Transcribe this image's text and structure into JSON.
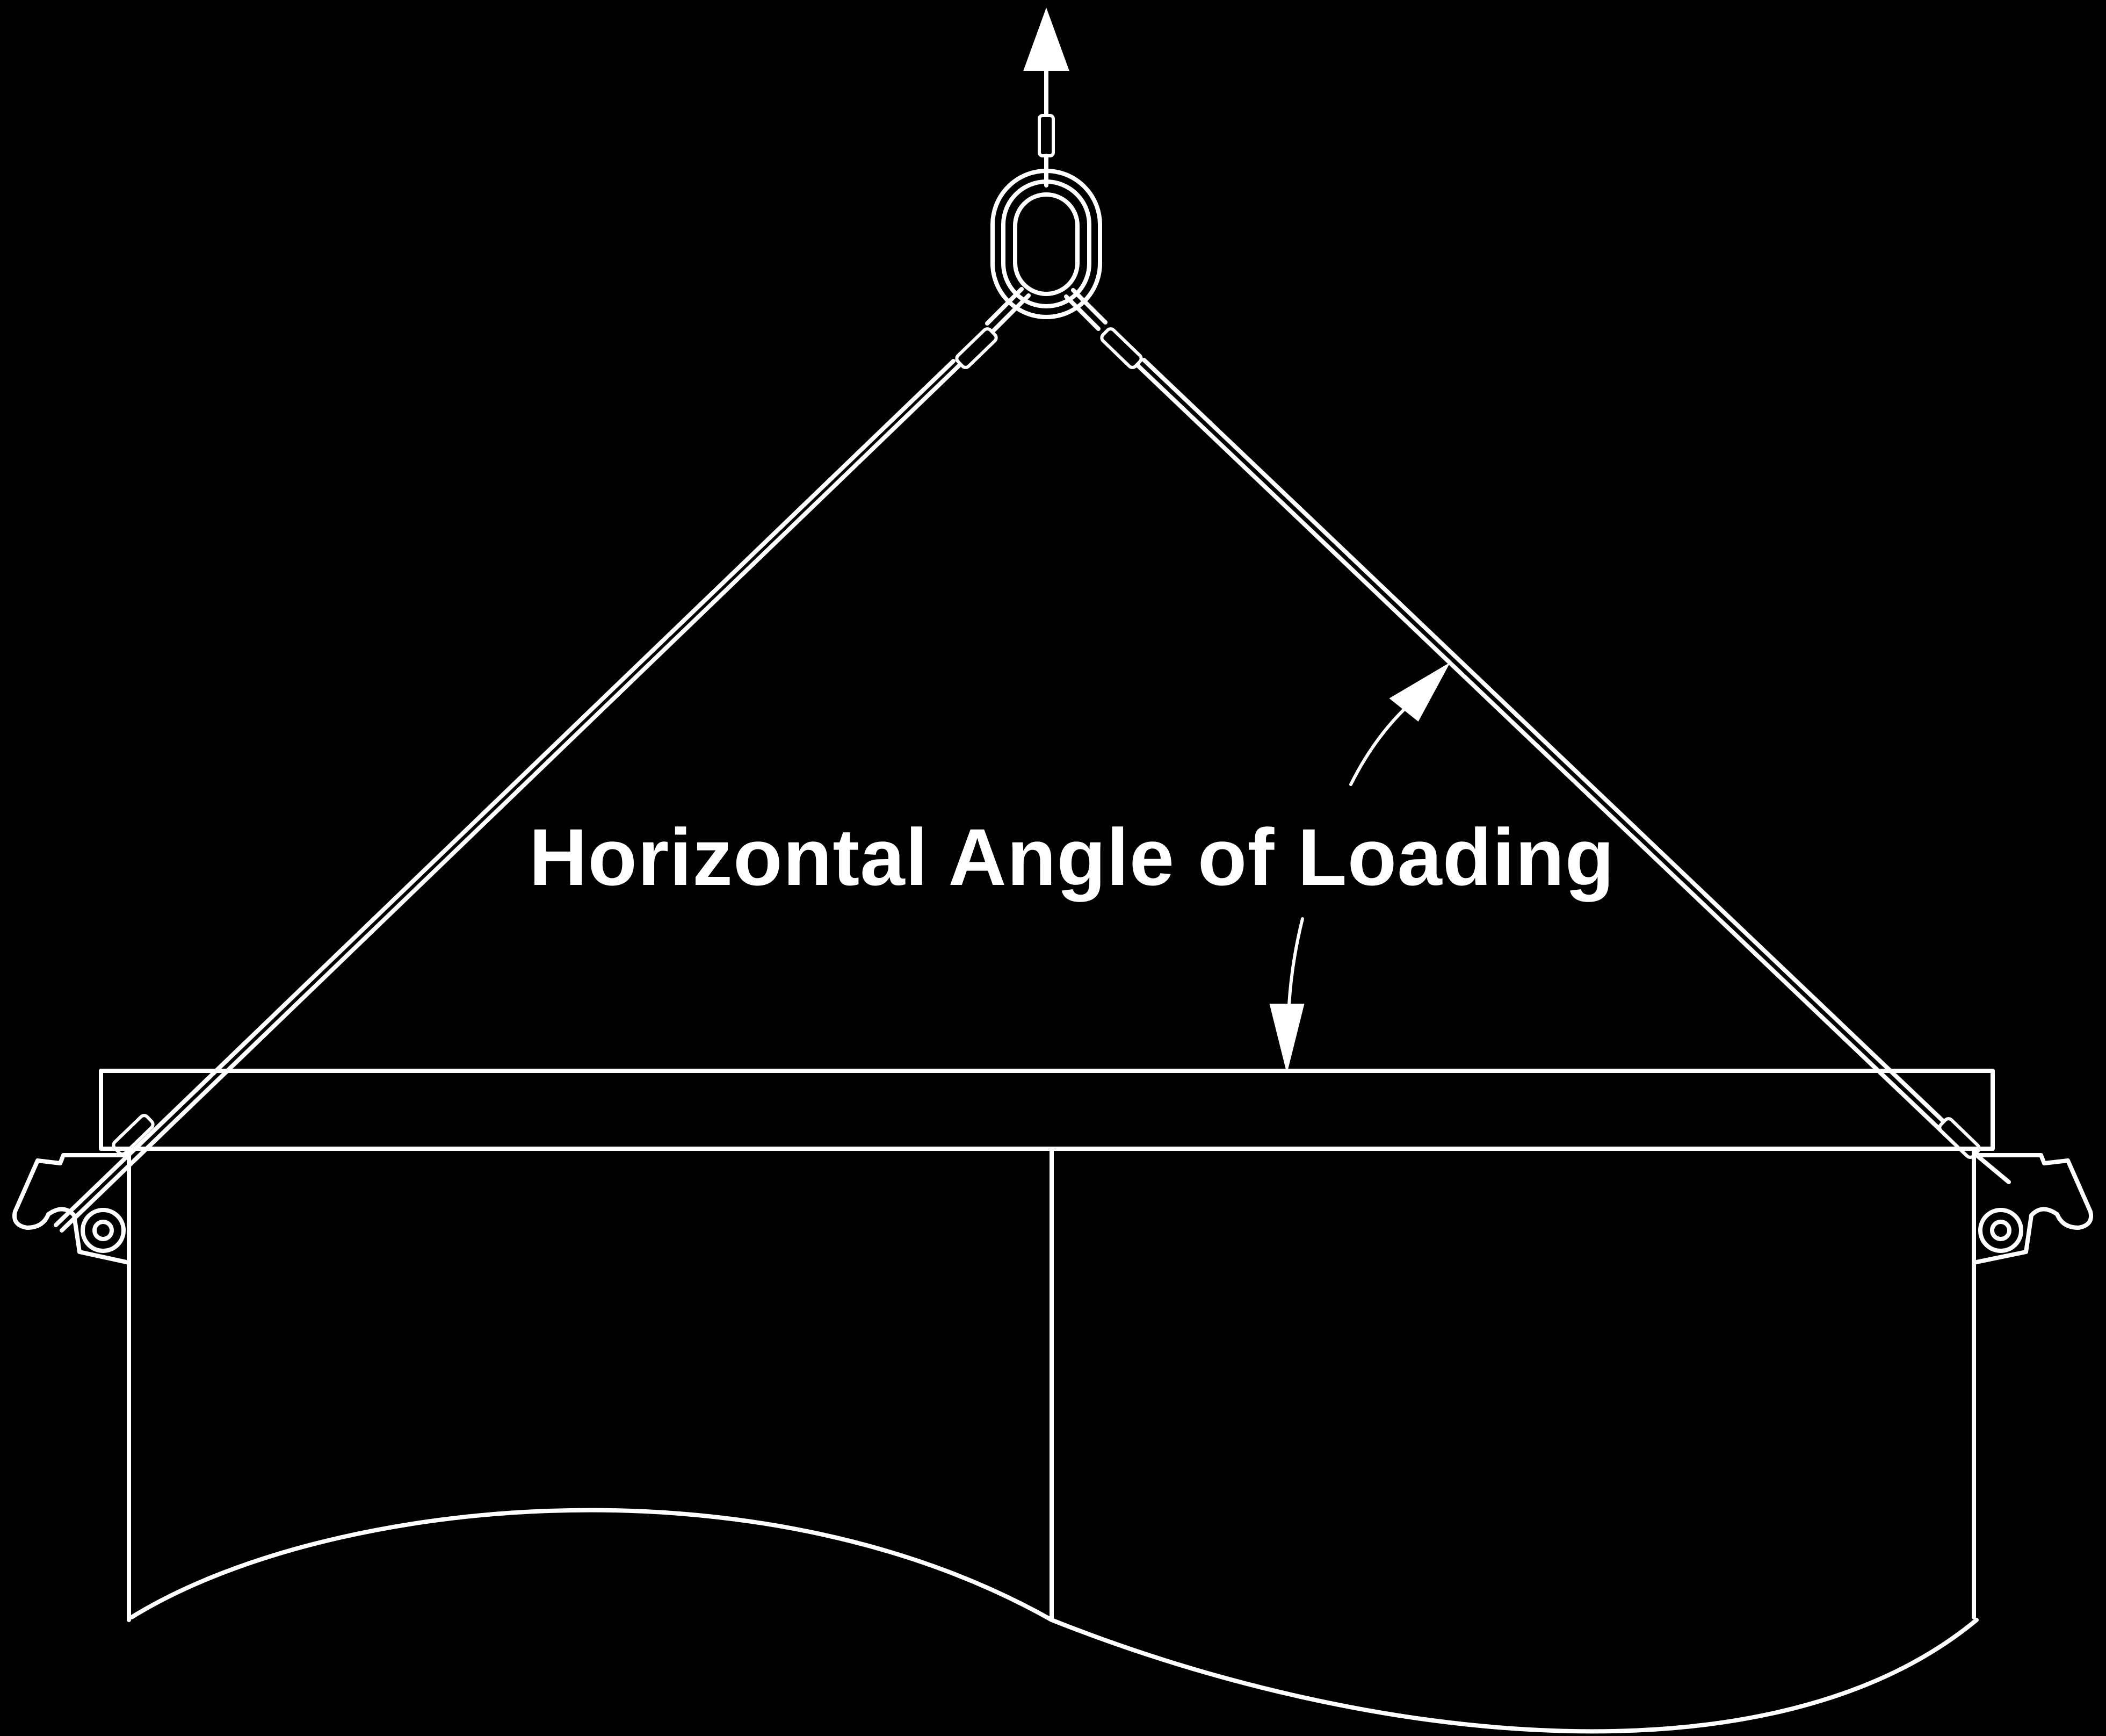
{
  "diagram": {
    "title": "Horizontal Angle of Loading",
    "colors": {
      "background": "#000000",
      "stroke": "#ffffff"
    }
  }
}
